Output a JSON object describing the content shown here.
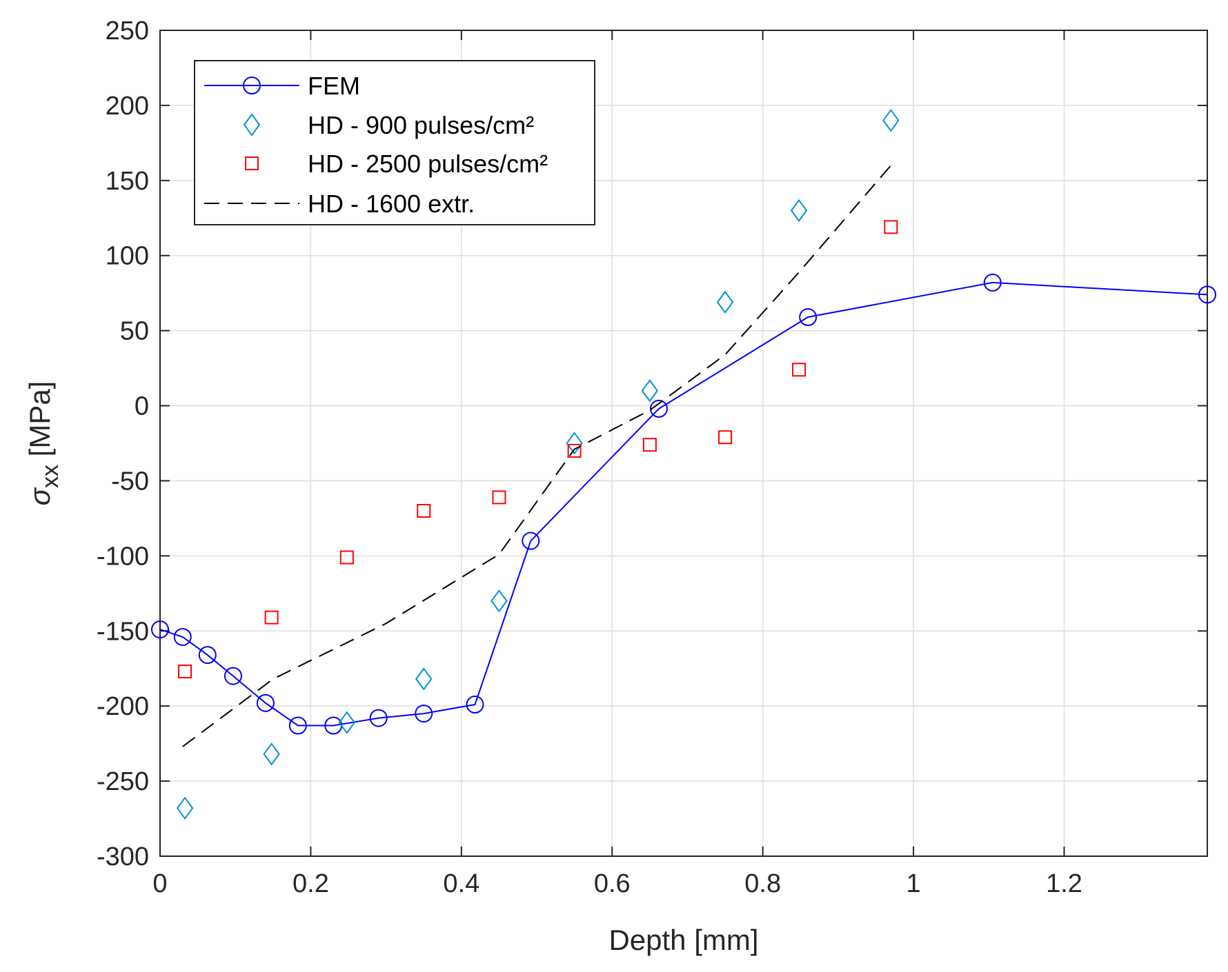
{
  "chart_data": {
    "type": "line",
    "title": "",
    "xlabel": "Depth [mm]",
    "ylabel_symbol": "σ",
    "ylabel_subscript": "xx",
    "ylabel_unit": " [MPa]",
    "xlim": [
      0,
      1.39
    ],
    "ylim": [
      -300,
      250
    ],
    "xticks": [
      0,
      0.2,
      0.4,
      0.6,
      0.8,
      1,
      1.2
    ],
    "xtick_labels": [
      "0",
      "0.2",
      "0.4",
      "0.6",
      "0.8",
      "1",
      "1.2"
    ],
    "yticks": [
      -300,
      -250,
      -200,
      -150,
      -100,
      -50,
      0,
      50,
      100,
      150,
      200,
      250
    ],
    "ytick_labels": [
      "-300",
      "-250",
      "-200",
      "-150",
      "-100",
      "-50",
      "0",
      "50",
      "100",
      "150",
      "200",
      "250"
    ],
    "grid": true,
    "legend_position": "top-left",
    "series": [
      {
        "name": "FEM",
        "style": "line-circle",
        "color": "#0000ff",
        "x": [
          0,
          0.03,
          0.063,
          0.097,
          0.14,
          0.183,
          0.23,
          0.29,
          0.35,
          0.418,
          0.492,
          0.662,
          0.86,
          1.105,
          1.39
        ],
        "y": [
          -149,
          -154,
          -166,
          -180,
          -198,
          -213,
          -213,
          -208,
          -205,
          -199,
          -90,
          -2,
          59,
          82,
          74
        ]
      },
      {
        "name": "HD - 900 pulses/cm²",
        "style": "marker-diamond",
        "color": "#0094d8",
        "x": [
          0.033,
          0.148,
          0.248,
          0.35,
          0.45,
          0.55,
          0.65,
          0.75,
          0.848,
          0.97
        ],
        "y": [
          -268,
          -232,
          -211,
          -182,
          -130,
          -25,
          10,
          69,
          130,
          190
        ]
      },
      {
        "name": "HD - 2500 pulses/cm²",
        "style": "marker-square",
        "color": "#ff0000",
        "x": [
          0.033,
          0.148,
          0.248,
          0.35,
          0.45,
          0.55,
          0.65,
          0.75,
          0.848,
          0.97
        ],
        "y": [
          -177,
          -141,
          -101,
          -70,
          -61,
          -30,
          -26,
          -21,
          24,
          119
        ]
      },
      {
        "name": "HD - 1600 extr.",
        "style": "dashed-line",
        "color": "#000000",
        "x": [
          0.03,
          0.15,
          0.3,
          0.45,
          0.55,
          0.65,
          0.75,
          0.85,
          0.97
        ],
        "y": [
          -227,
          -182,
          -145,
          -99,
          -29,
          -3,
          34,
          90,
          160
        ]
      }
    ]
  }
}
